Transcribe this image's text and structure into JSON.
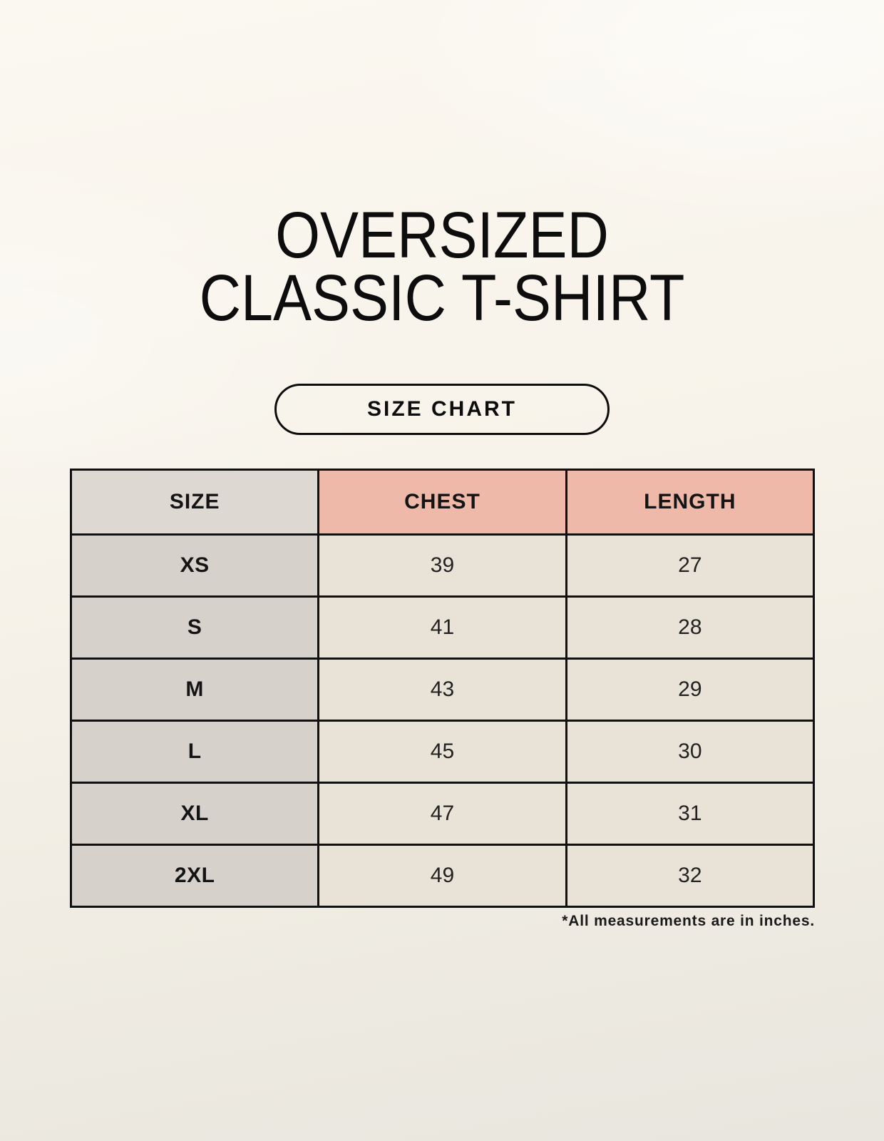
{
  "page": {
    "title_line1": "OVERSIZED",
    "title_line2": "CLASSIC T-SHIRT",
    "size_chart_button_label": "SIZE CHART",
    "footnote": "*All measurements are in inches."
  },
  "chart_data": {
    "type": "table",
    "title": "OVERSIZED CLASSIC T-SHIRT",
    "subtitle": "SIZE CHART",
    "columns": [
      "SIZE",
      "CHEST",
      "LENGTH"
    ],
    "rows": [
      [
        "XS",
        39,
        27
      ],
      [
        "S",
        41,
        28
      ],
      [
        "M",
        43,
        29
      ],
      [
        "L",
        45,
        30
      ],
      [
        "XL",
        47,
        31
      ],
      [
        "2XL",
        49,
        32
      ]
    ],
    "units": "inches",
    "note": "*All measurements are in inches."
  },
  "colors": {
    "header_pink": "#eeb9a8",
    "header_gray": "#ded8d3",
    "label_bg": "#d7d1cc",
    "cell_bg": "#e9e2d7",
    "border_color": "#101010",
    "bg_top": "#fbf8f1",
    "bg_bottom": "#e8e6de"
  }
}
